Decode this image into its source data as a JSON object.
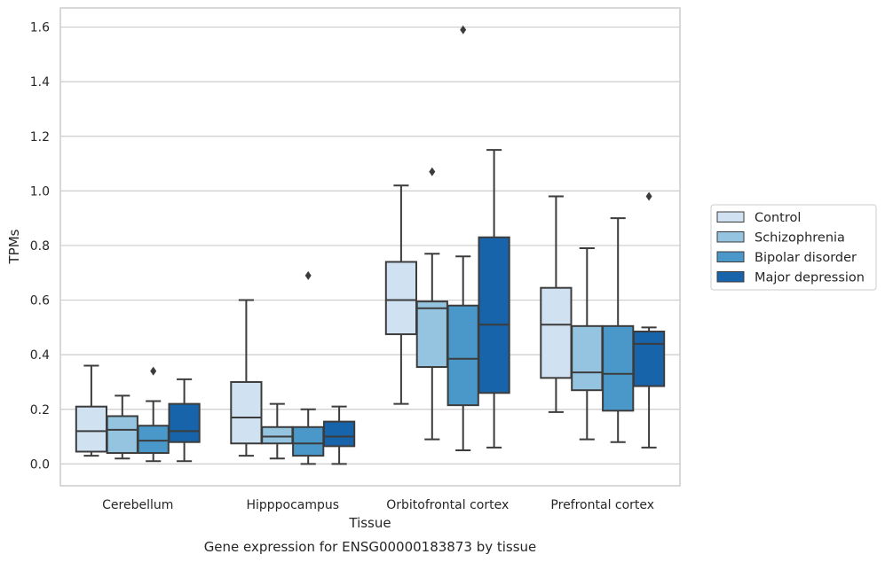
{
  "chart_data": {
    "type": "box",
    "title": "",
    "caption": "Gene expression for ENSG00000183873 by tissue",
    "xlabel": "Tissue",
    "ylabel": "TPMs",
    "ylim": [
      -0.08,
      1.67
    ],
    "yticks": [
      "0.0",
      "0.2",
      "0.4",
      "0.6",
      "0.8",
      "1.0",
      "1.2",
      "1.4",
      "1.6"
    ],
    "grid": "horizontal",
    "legend_position": "right",
    "categories": [
      "Cerebellum",
      "Hipppocampus",
      "Orbitofrontal cortex",
      "Prefrontal cortex"
    ],
    "series": [
      {
        "name": "Control",
        "color": "#d0e1f2",
        "boxes": [
          {
            "min": 0.03,
            "q1": 0.045,
            "median": 0.12,
            "q3": 0.21,
            "max": 0.36,
            "outliers": []
          },
          {
            "min": 0.03,
            "q1": 0.075,
            "median": 0.17,
            "q3": 0.3,
            "max": 0.6,
            "outliers": []
          },
          {
            "min": 0.22,
            "q1": 0.475,
            "median": 0.6,
            "q3": 0.74,
            "max": 1.02,
            "outliers": []
          },
          {
            "min": 0.19,
            "q1": 0.315,
            "median": 0.51,
            "q3": 0.645,
            "max": 0.98,
            "outliers": []
          }
        ]
      },
      {
        "name": "Schizophrenia",
        "color": "#94c4df",
        "boxes": [
          {
            "min": 0.02,
            "q1": 0.04,
            "median": 0.125,
            "q3": 0.175,
            "max": 0.25,
            "outliers": []
          },
          {
            "min": 0.02,
            "q1": 0.075,
            "median": 0.1,
            "q3": 0.135,
            "max": 0.22,
            "outliers": []
          },
          {
            "min": 0.09,
            "q1": 0.355,
            "median": 0.57,
            "q3": 0.595,
            "max": 0.77,
            "outliers": [
              1.07
            ]
          },
          {
            "min": 0.09,
            "q1": 0.27,
            "median": 0.335,
            "q3": 0.505,
            "max": 0.79,
            "outliers": []
          }
        ]
      },
      {
        "name": "Bipolar disorder",
        "color": "#4a98c9",
        "boxes": [
          {
            "min": 0.01,
            "q1": 0.04,
            "median": 0.085,
            "q3": 0.14,
            "max": 0.23,
            "outliers": [
              0.34
            ]
          },
          {
            "min": 0.0,
            "q1": 0.03,
            "median": 0.075,
            "q3": 0.135,
            "max": 0.2,
            "outliers": [
              0.69
            ]
          },
          {
            "min": 0.05,
            "q1": 0.215,
            "median": 0.385,
            "q3": 0.58,
            "max": 0.76,
            "outliers": [
              1.59
            ]
          },
          {
            "min": 0.08,
            "q1": 0.195,
            "median": 0.33,
            "q3": 0.505,
            "max": 0.9,
            "outliers": []
          }
        ]
      },
      {
        "name": "Major depression",
        "color": "#1764ab",
        "boxes": [
          {
            "min": 0.01,
            "q1": 0.08,
            "median": 0.12,
            "q3": 0.22,
            "max": 0.31,
            "outliers": []
          },
          {
            "min": 0.0,
            "q1": 0.065,
            "median": 0.1,
            "q3": 0.155,
            "max": 0.21,
            "outliers": []
          },
          {
            "min": 0.06,
            "q1": 0.26,
            "median": 0.51,
            "q3": 0.83,
            "max": 1.15,
            "outliers": []
          },
          {
            "min": 0.06,
            "q1": 0.285,
            "median": 0.44,
            "q3": 0.485,
            "max": 0.5,
            "outliers": [
              0.98
            ]
          }
        ]
      }
    ]
  }
}
